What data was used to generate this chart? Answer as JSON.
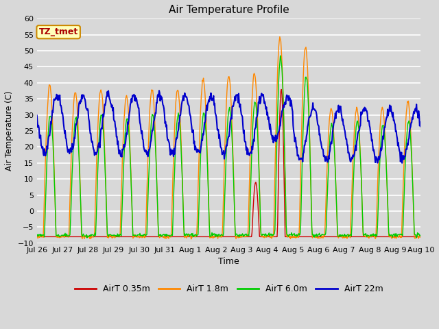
{
  "title": "Air Temperature Profile",
  "xlabel": "Time",
  "ylabel": "Air Temperature (C)",
  "ylim": [
    -10,
    60
  ],
  "yticks": [
    -10,
    -5,
    0,
    5,
    10,
    15,
    20,
    25,
    30,
    35,
    40,
    45,
    50,
    55,
    60
  ],
  "background_color": "#d8d8d8",
  "plot_bg_color": "#d8d8d8",
  "grid_color": "#ffffff",
  "annotation_text": "TZ_tmet",
  "annotation_color": "#aa0000",
  "annotation_bg": "#ffffbb",
  "annotation_border": "#cc8800",
  "colors": {
    "AirT 0.35m": "#cc0000",
    "AirT 1.8m": "#ff8800",
    "AirT 6.0m": "#00cc00",
    "AirT 22m": "#0000cc"
  },
  "legend_labels": [
    "AirT 0.35m",
    "AirT 1.8m",
    "AirT 6.0m",
    "AirT 22m"
  ],
  "x_tick_labels": [
    "Jul 26",
    "Jul 27",
    "Jul 28",
    "Jul 29",
    "Jul 30",
    "Jul 31",
    "Aug 1",
    "Aug 2",
    "Aug 3",
    "Aug 4",
    "Aug 5",
    "Aug 6",
    "Aug 7",
    "Aug 8",
    "Aug 9",
    "Aug 10"
  ],
  "figsize": [
    6.4,
    4.8
  ],
  "dpi": 100
}
